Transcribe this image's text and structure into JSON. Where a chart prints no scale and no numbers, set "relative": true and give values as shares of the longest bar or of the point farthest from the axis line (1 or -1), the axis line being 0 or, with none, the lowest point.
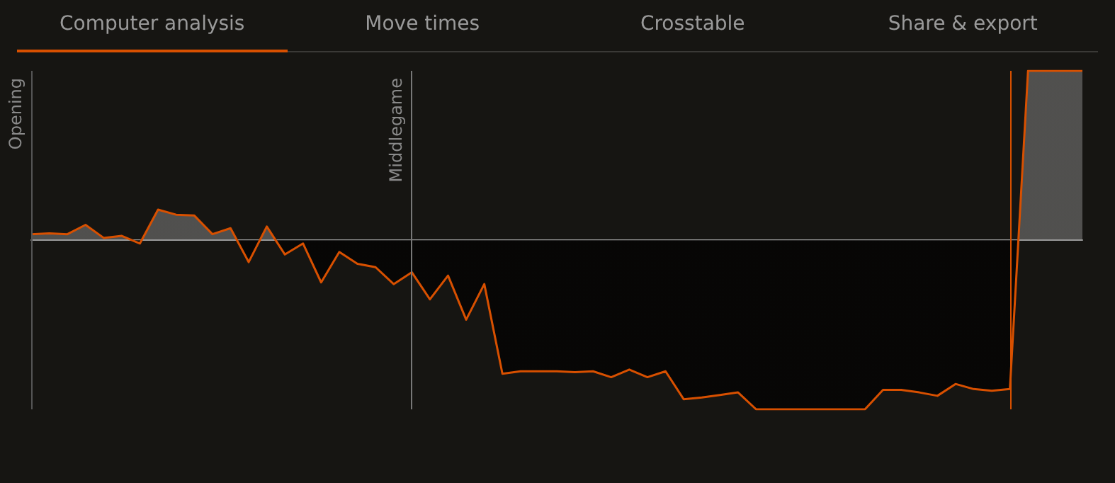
{
  "chart_data": {
    "type": "area",
    "relative": true,
    "categories": [
      null,
      null,
      null,
      null,
      null,
      null,
      null,
      null,
      null,
      null,
      null,
      null,
      null,
      null,
      null,
      null,
      null,
      null,
      null,
      null,
      null,
      null,
      null,
      null,
      null,
      null,
      null,
      null,
      null,
      null,
      null,
      null,
      null,
      null,
      null,
      null,
      null,
      null,
      null,
      null,
      null,
      null,
      null,
      null,
      null,
      null,
      null,
      null,
      null,
      null,
      null,
      null,
      null,
      null,
      null,
      null,
      null,
      null,
      null
    ],
    "values": [
      0.035,
      0.04,
      0.035,
      0.09,
      0.013,
      0.025,
      -0.02,
      0.18,
      0.15,
      0.145,
      0.035,
      0.07,
      -0.13,
      0.08,
      -0.085,
      -0.02,
      -0.25,
      -0.07,
      -0.14,
      -0.16,
      -0.26,
      -0.19,
      -0.35,
      -0.21,
      -0.47,
      -0.26,
      -0.79,
      -0.775,
      -0.775,
      -0.775,
      -0.78,
      -0.775,
      -0.81,
      -0.765,
      -0.81,
      -0.775,
      -0.94,
      -0.93,
      -0.915,
      -0.9,
      -1,
      -1,
      -1,
      -1,
      -1,
      -1,
      -1,
      -0.885,
      -0.885,
      -0.9,
      -0.92,
      -0.85,
      -0.88,
      -0.89,
      -0.88,
      1,
      1,
      1,
      1
    ],
    "color": "#d85000",
    "marker": "none",
    "annotations": [
      "Computer analysis",
      "Move times",
      "Crosstable",
      "Share & export",
      "Opening",
      "Middlegame"
    ]
  }
}
